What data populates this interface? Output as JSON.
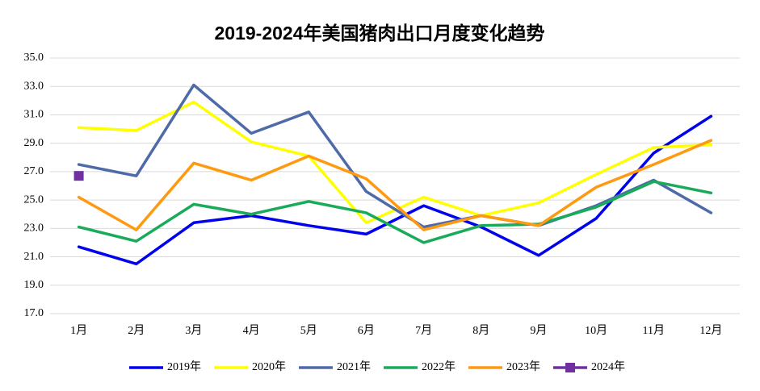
{
  "chart_data": {
    "type": "line",
    "title": "2019-2024年美国猪肉出口月度变化趋势",
    "categories": [
      "1月",
      "2月",
      "3月",
      "4月",
      "5月",
      "6月",
      "7月",
      "8月",
      "9月",
      "10月",
      "11月",
      "12月"
    ],
    "series": [
      {
        "name": "2019年",
        "color": "#0000ee",
        "values": [
          21.7,
          20.5,
          23.4,
          23.9,
          23.2,
          22.6,
          24.6,
          23.1,
          21.1,
          23.7,
          28.3,
          30.9
        ]
      },
      {
        "name": "2020年",
        "color": "#ffff00",
        "values": [
          30.1,
          29.9,
          31.9,
          29.1,
          28.1,
          23.4,
          25.2,
          23.9,
          24.8,
          26.8,
          28.7,
          28.9
        ]
      },
      {
        "name": "2021年",
        "color": "#4f6aa8",
        "values": [
          27.5,
          26.7,
          33.1,
          29.7,
          31.2,
          25.6,
          23.1,
          23.9,
          23.2,
          24.6,
          26.4,
          24.1
        ]
      },
      {
        "name": "2022年",
        "color": "#1aab5a",
        "values": [
          23.1,
          22.1,
          24.7,
          24.0,
          24.9,
          24.1,
          22.0,
          23.2,
          23.3,
          24.5,
          26.3,
          25.5
        ]
      },
      {
        "name": "2023年",
        "color": "#ff9a10",
        "values": [
          25.2,
          22.9,
          27.6,
          26.4,
          28.1,
          26.5,
          22.9,
          23.9,
          23.2,
          25.9,
          27.5,
          29.2
        ]
      },
      {
        "name": "2024年",
        "color": "#7030a0",
        "marker": "square",
        "values": [
          26.7,
          null,
          null,
          null,
          null,
          null,
          null,
          null,
          null,
          null,
          null,
          null
        ]
      }
    ],
    "ylim": [
      17,
      35
    ],
    "yticks": [
      {
        "value": 17,
        "label": "17.0"
      },
      {
        "value": 19,
        "label": "19.0"
      },
      {
        "value": 21,
        "label": "21.0"
      },
      {
        "value": 23,
        "label": "23.0"
      },
      {
        "value": 25,
        "label": "25.0"
      },
      {
        "value": 27,
        "label": "27.0"
      },
      {
        "value": 29,
        "label": "29.0"
      },
      {
        "value": 31,
        "label": "31.0"
      },
      {
        "value": 33,
        "label": "33.0"
      },
      {
        "value": 35,
        "label": "35.0"
      }
    ],
    "grid": true,
    "legend": "bottom"
  }
}
